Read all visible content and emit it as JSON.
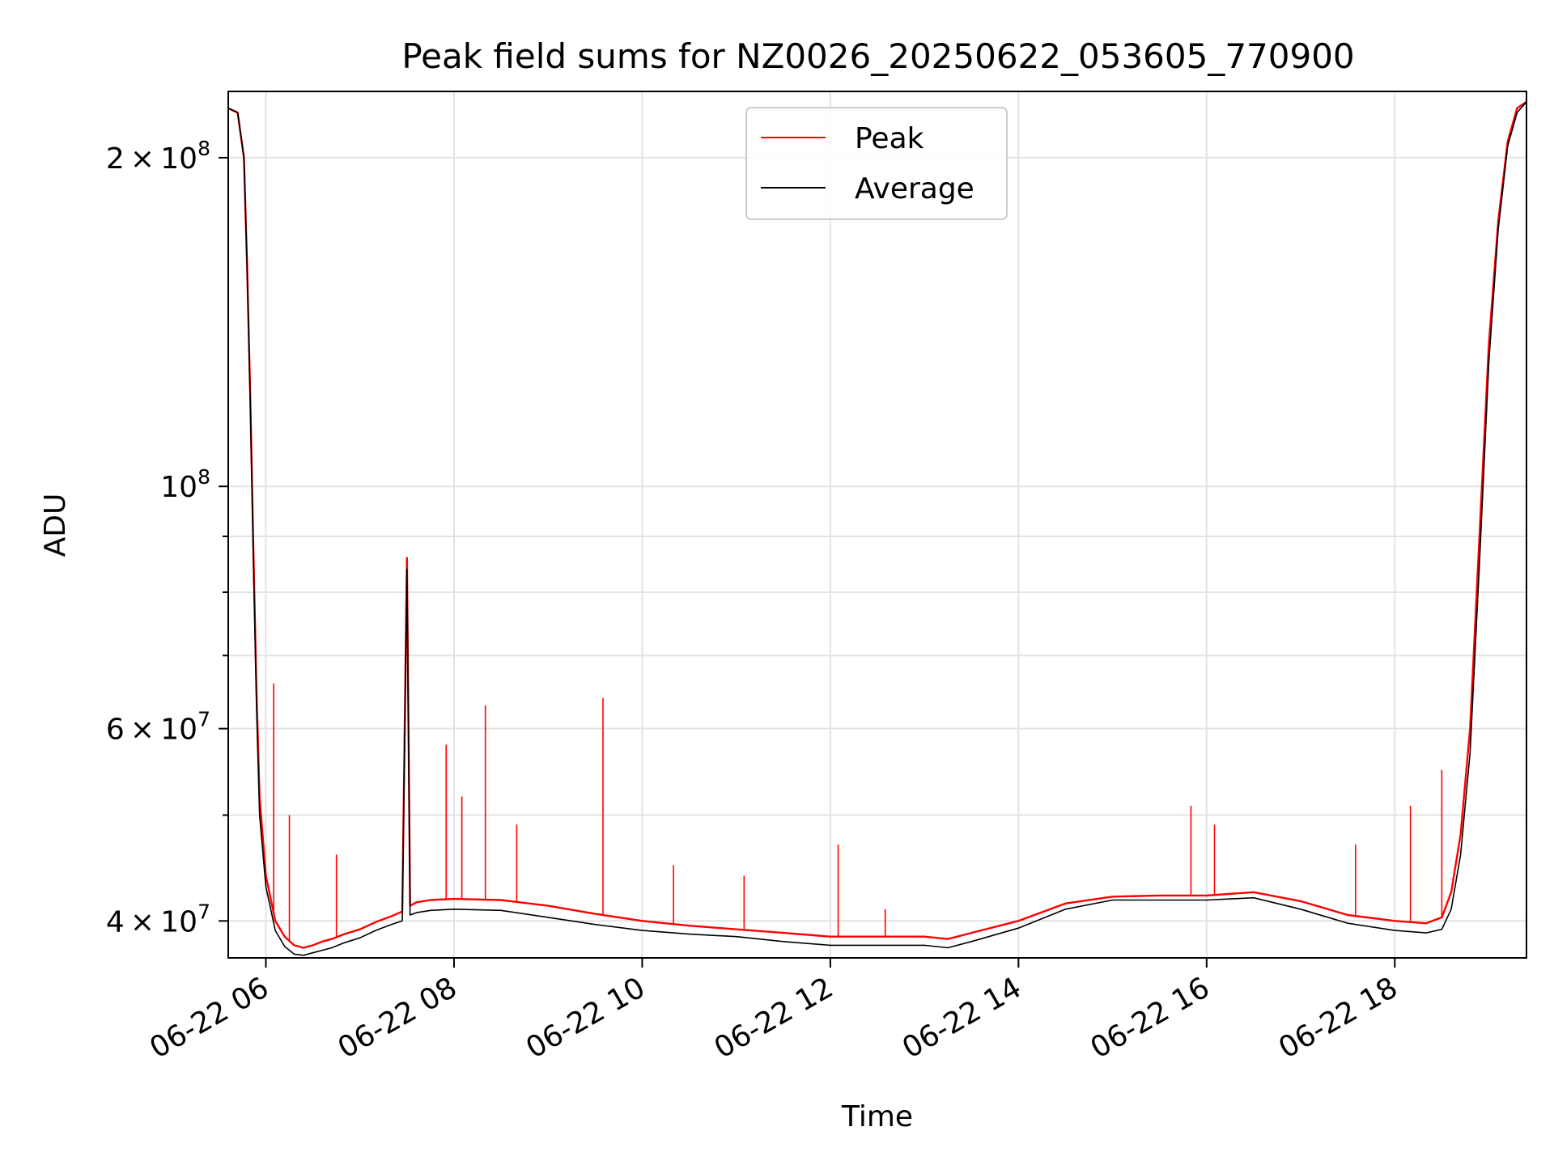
{
  "chart_data": {
    "type": "line",
    "title": "Peak field sums for NZ0026_20250622_053605_770900",
    "xlabel": "Time",
    "ylabel": "ADU",
    "x_scale": "time",
    "y_scale": "log",
    "xlim": [
      "2025-06-22 05:36",
      "2025-06-22 19:24"
    ],
    "ylim": [
      37000000,
      230000000
    ],
    "grid": true,
    "legend_position": "top-center",
    "x_ticks": [
      {
        "value": "2025-06-22 06:00",
        "label": "06-22 06"
      },
      {
        "value": "2025-06-22 08:00",
        "label": "06-22 08"
      },
      {
        "value": "2025-06-22 10:00",
        "label": "06-22 10"
      },
      {
        "value": "2025-06-22 12:00",
        "label": "06-22 12"
      },
      {
        "value": "2025-06-22 14:00",
        "label": "06-22 14"
      },
      {
        "value": "2025-06-22 16:00",
        "label": "06-22 16"
      },
      {
        "value": "2025-06-22 18:00",
        "label": "06-22 18"
      }
    ],
    "y_ticks_major": [
      {
        "value": 40000000,
        "mantissa": "4",
        "exp": "7"
      },
      {
        "value": 60000000,
        "mantissa": "6",
        "exp": "7"
      },
      {
        "value": 100000000,
        "mantissa": "",
        "exp": "8"
      },
      {
        "value": 200000000,
        "mantissa": "2",
        "exp": "8"
      }
    ],
    "y_ticks_minor": [
      50000000,
      70000000,
      80000000,
      90000000
    ],
    "series": [
      {
        "name": "Peak",
        "color": "#ff0000",
        "x": [
          "2025-06-22 05:36",
          "2025-06-22 05:42",
          "2025-06-22 05:46",
          "2025-06-22 05:48",
          "2025-06-22 05:50",
          "2025-06-22 05:52",
          "2025-06-22 05:54",
          "2025-06-22 05:56",
          "2025-06-22 06:00",
          "2025-06-22 06:06",
          "2025-06-22 06:12",
          "2025-06-22 06:18",
          "2025-06-22 06:24",
          "2025-06-22 06:30",
          "2025-06-22 06:36",
          "2025-06-22 06:42",
          "2025-06-22 06:50",
          "2025-06-22 07:00",
          "2025-06-22 07:10",
          "2025-06-22 07:20",
          "2025-06-22 07:27",
          "2025-06-22 07:30",
          "2025-06-22 07:32",
          "2025-06-22 07:36",
          "2025-06-22 07:45",
          "2025-06-22 08:00",
          "2025-06-22 08:30",
          "2025-06-22 09:00",
          "2025-06-22 09:30",
          "2025-06-22 10:00",
          "2025-06-22 10:30",
          "2025-06-22 11:00",
          "2025-06-22 11:30",
          "2025-06-22 12:00",
          "2025-06-22 12:30",
          "2025-06-22 13:00",
          "2025-06-22 13:15",
          "2025-06-22 13:30",
          "2025-06-22 14:00",
          "2025-06-22 14:30",
          "2025-06-22 15:00",
          "2025-06-22 15:30",
          "2025-06-22 16:00",
          "2025-06-22 16:30",
          "2025-06-22 17:00",
          "2025-06-22 17:30",
          "2025-06-22 18:00",
          "2025-06-22 18:20",
          "2025-06-22 18:30",
          "2025-06-22 18:36",
          "2025-06-22 18:42",
          "2025-06-22 18:48",
          "2025-06-22 18:54",
          "2025-06-22 19:00",
          "2025-06-22 19:06",
          "2025-06-22 19:12",
          "2025-06-22 19:18",
          "2025-06-22 19:24"
        ],
        "y": [
          222000000,
          220000000,
          200000000,
          160000000,
          122000000,
          88000000,
          65000000,
          52000000,
          44000000,
          40000000,
          38700000,
          38000000,
          37800000,
          38000000,
          38300000,
          38500000,
          38900000,
          39300000,
          39900000,
          40400000,
          40800000,
          86000000,
          41300000,
          41600000,
          41800000,
          41900000,
          41800000,
          41300000,
          40600000,
          40000000,
          39600000,
          39300000,
          39000000,
          38700000,
          38700000,
          38700000,
          38500000,
          39000000,
          40000000,
          41500000,
          42100000,
          42200000,
          42200000,
          42500000,
          41700000,
          40500000,
          40000000,
          39800000,
          40300000,
          42500000,
          48000000,
          60000000,
          90000000,
          135000000,
          175000000,
          207000000,
          222000000,
          225000000
        ]
      },
      {
        "name": "Average",
        "color": "#000000",
        "x": [
          "2025-06-22 05:36",
          "2025-06-22 05:42",
          "2025-06-22 05:46",
          "2025-06-22 05:48",
          "2025-06-22 05:50",
          "2025-06-22 05:52",
          "2025-06-22 05:54",
          "2025-06-22 05:56",
          "2025-06-22 06:00",
          "2025-06-22 06:06",
          "2025-06-22 06:12",
          "2025-06-22 06:18",
          "2025-06-22 06:24",
          "2025-06-22 06:30",
          "2025-06-22 06:36",
          "2025-06-22 06:42",
          "2025-06-22 06:50",
          "2025-06-22 07:00",
          "2025-06-22 07:10",
          "2025-06-22 07:20",
          "2025-06-22 07:27",
          "2025-06-22 07:30",
          "2025-06-22 07:32",
          "2025-06-22 07:36",
          "2025-06-22 07:45",
          "2025-06-22 08:00",
          "2025-06-22 08:30",
          "2025-06-22 09:00",
          "2025-06-22 09:30",
          "2025-06-22 10:00",
          "2025-06-22 10:30",
          "2025-06-22 11:00",
          "2025-06-22 11:30",
          "2025-06-22 12:00",
          "2025-06-22 12:30",
          "2025-06-22 13:00",
          "2025-06-22 13:15",
          "2025-06-22 13:30",
          "2025-06-22 14:00",
          "2025-06-22 14:30",
          "2025-06-22 15:00",
          "2025-06-22 15:30",
          "2025-06-22 16:00",
          "2025-06-22 16:30",
          "2025-06-22 17:00",
          "2025-06-22 17:30",
          "2025-06-22 18:00",
          "2025-06-22 18:20",
          "2025-06-22 18:30",
          "2025-06-22 18:36",
          "2025-06-22 18:42",
          "2025-06-22 18:48",
          "2025-06-22 18:54",
          "2025-06-22 19:00",
          "2025-06-22 19:06",
          "2025-06-22 19:12",
          "2025-06-22 19:18",
          "2025-06-22 19:24"
        ],
        "y": [
          222000000,
          220000000,
          200000000,
          160000000,
          120000000,
          86000000,
          63000000,
          50000000,
          43000000,
          39200000,
          37900000,
          37300000,
          37200000,
          37400000,
          37600000,
          37800000,
          38200000,
          38600000,
          39200000,
          39700000,
          40000000,
          84000000,
          40500000,
          40700000,
          40900000,
          41000000,
          40900000,
          40300000,
          39700000,
          39200000,
          38900000,
          38700000,
          38300000,
          38000000,
          38000000,
          38000000,
          37800000,
          38300000,
          39400000,
          41000000,
          41800000,
          41800000,
          41800000,
          42000000,
          41000000,
          39800000,
          39200000,
          39000000,
          39300000,
          41000000,
          46000000,
          57000000,
          85000000,
          130000000,
          172000000,
          205000000,
          220000000,
          225000000
        ]
      }
    ],
    "spikes": {
      "x": [
        "2025-06-22 06:05",
        "2025-06-22 06:15",
        "2025-06-22 06:45",
        "2025-06-22 07:55",
        "2025-06-22 08:05",
        "2025-06-22 08:20",
        "2025-06-22 08:40",
        "2025-06-22 09:35",
        "2025-06-22 10:20",
        "2025-06-22 11:05",
        "2025-06-22 12:05",
        "2025-06-22 12:35",
        "2025-06-22 15:50",
        "2025-06-22 16:05",
        "2025-06-22 17:35",
        "2025-06-22 18:10",
        "2025-06-22 18:30"
      ],
      "y": [
        66000000,
        50000000,
        46000000,
        58000000,
        52000000,
        63000000,
        49000000,
        64000000,
        45000000,
        44000000,
        47000000,
        41000000,
        51000000,
        49000000,
        47000000,
        51000000,
        55000000
      ]
    }
  }
}
